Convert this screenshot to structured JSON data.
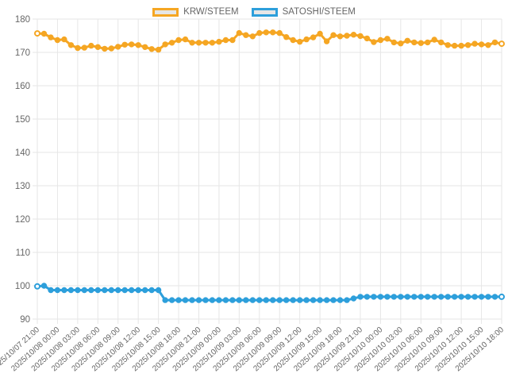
{
  "chart_data": {
    "type": "line",
    "title": "",
    "xlabel": "",
    "ylabel": "",
    "ylim": [
      90,
      180
    ],
    "y_ticks": [
      90,
      100,
      110,
      120,
      130,
      140,
      150,
      160,
      170,
      180
    ],
    "grid": true,
    "legend_position": "top",
    "points_per_label": 3,
    "x_labels": [
      "2025/10/07 21:00",
      "2025/10/08 00:00",
      "2025/10/08 03:00",
      "2025/10/08 06:00",
      "2025/10/08 09:00",
      "2025/10/08 12:00",
      "2025/10/08 15:00",
      "2025/10/08 18:00",
      "2025/10/08 21:00",
      "2025/10/09 00:00",
      "2025/10/09 03:00",
      "2025/10/09 06:00",
      "2025/10/09 09:00",
      "2025/10/09 12:00",
      "2025/10/09 15:00",
      "2025/10/09 18:00",
      "2025/10/09 21:00",
      "2025/10/10 00:00",
      "2025/10/10 03:00",
      "2025/10/10 06:00",
      "2025/10/10 09:00",
      "2025/10/10 12:00",
      "2025/10/10 15:00",
      "2025/10/10 18:00"
    ],
    "series": [
      {
        "name": "KRW/STEEM",
        "color": "#F5A623",
        "values": [
          175.7,
          175.6,
          174.5,
          173.7,
          173.9,
          172.2,
          171.3,
          171.4,
          172.0,
          171.6,
          171.1,
          171.2,
          171.7,
          172.3,
          172.4,
          172.2,
          171.6,
          171.0,
          170.8,
          172.4,
          172.9,
          173.7,
          173.9,
          172.9,
          172.9,
          172.9,
          172.9,
          173.2,
          173.7,
          173.7,
          175.8,
          175.2,
          174.8,
          175.8,
          176.0,
          176.0,
          175.8,
          174.6,
          173.7,
          173.2,
          173.9,
          174.5,
          175.6,
          173.3,
          175.2,
          174.8,
          175.0,
          175.3,
          174.9,
          174.2,
          173.1,
          173.7,
          174.1,
          173.0,
          172.7,
          173.5,
          173.0,
          172.8,
          173.0,
          173.8,
          173.0,
          172.2,
          172.0,
          172.0,
          172.2,
          172.6,
          172.4,
          172.2,
          173.0,
          172.6
        ]
      },
      {
        "name": "SATOSHI/STEEM",
        "color": "#2D9FDB",
        "values": [
          99.8,
          100.0,
          98.7,
          98.7,
          98.7,
          98.7,
          98.7,
          98.7,
          98.7,
          98.7,
          98.7,
          98.7,
          98.7,
          98.7,
          98.7,
          98.7,
          98.7,
          98.7,
          98.7,
          95.7,
          95.7,
          95.7,
          95.7,
          95.7,
          95.7,
          95.7,
          95.7,
          95.7,
          95.7,
          95.7,
          95.7,
          95.7,
          95.7,
          95.7,
          95.7,
          95.7,
          95.7,
          95.7,
          95.7,
          95.7,
          95.7,
          95.7,
          95.7,
          95.7,
          95.7,
          95.7,
          95.7,
          96.2,
          96.7,
          96.7,
          96.7,
          96.7,
          96.7,
          96.7,
          96.7,
          96.7,
          96.7,
          96.7,
          96.7,
          96.7,
          96.7,
          96.7,
          96.7,
          96.7,
          96.7,
          96.7,
          96.7,
          96.7,
          96.7,
          96.7
        ]
      }
    ],
    "style": {
      "grid_color": "#e6e6e6",
      "tick_label_color": "#666666",
      "background": "#ffffff",
      "legend_swatch_fill": "#e6e6e6"
    }
  }
}
